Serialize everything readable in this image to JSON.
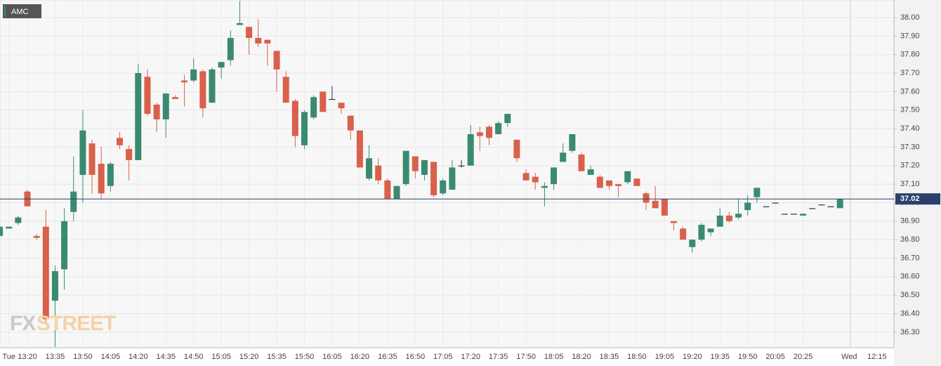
{
  "chart_data": {
    "type": "candlestick",
    "watermark": [
      "FX",
      "STREET"
    ],
    "categories": [
      null,
      "Tue",
      null,
      "13:20",
      null,
      null,
      "13:35",
      null,
      null,
      "13:50",
      null,
      null,
      "14:05",
      null,
      null,
      "14:20",
      null,
      null,
      "14:35",
      null,
      null,
      "14:50",
      null,
      null,
      "15:05",
      null,
      null,
      "15:20",
      null,
      null,
      "15:35",
      null,
      null,
      "15:50",
      null,
      null,
      "16:05",
      null,
      null,
      "16:20",
      null,
      null,
      "16:35",
      null,
      null,
      "16:50",
      null,
      null,
      "17:05",
      null,
      null,
      "17:20",
      null,
      null,
      "17:35",
      null,
      null,
      "17:50",
      null,
      null,
      "18:05",
      null,
      null,
      "18:20",
      null,
      null,
      "18:35",
      null,
      null,
      "18:50",
      null,
      null,
      "19:05",
      null,
      null,
      "19:20",
      null,
      null,
      "19:35",
      null,
      null,
      "19:50",
      null,
      null,
      "20:05",
      null,
      null,
      "20:25",
      null,
      null,
      null,
      null,
      "Wed",
      null,
      null,
      "12:15",
      null
    ],
    "separator_index": 92,
    "series": [
      {
        "name": "AMC",
        "up_color": "#3a8a70",
        "down_color": "#d9604a",
        "flat_color": "#333333",
        "open": [
          36.82,
          36.86,
          36.89,
          37.06,
          36.82,
          36.87,
          36.47,
          36.64,
          36.95,
          37.15,
          37.32,
          37.21,
          37.09,
          37.35,
          37.29,
          37.23,
          37.68,
          37.53,
          37.45,
          37.57,
          37.66,
          37.66,
          37.71,
          37.54,
          37.73,
          37.77,
          37.96,
          37.95,
          37.89,
          37.88,
          37.82,
          37.68,
          37.55,
          37.31,
          37.46,
          37.6,
          37.56,
          37.54,
          37.47,
          37.39,
          37.13,
          37.2,
          37.12,
          37.02,
          37.1,
          37.25,
          37.15,
          37.22,
          37.05,
          37.07,
          37.2,
          37.2,
          37.38,
          37.41,
          37.37,
          37.43,
          37.34,
          37.16,
          37.14,
          37.08,
          37.1,
          37.22,
          37.28,
          37.26,
          37.15,
          37.14,
          37.12,
          37.1,
          37.11,
          37.13,
          37.05,
          37.01,
          37.02,
          36.9,
          36.86,
          36.76,
          36.8,
          36.84,
          36.87,
          36.93,
          36.92,
          36.96,
          37.03,
          36.98,
          37.0,
          36.94,
          36.94,
          36.93,
          36.97,
          36.99,
          36.98,
          36.97,
          null,
          null,
          null,
          null,
          null
        ],
        "high": [
          36.88,
          36.87,
          36.93,
          37.07,
          36.83,
          36.96,
          36.66,
          36.97,
          37.25,
          37.5,
          37.34,
          37.3,
          37.22,
          37.38,
          37.31,
          37.75,
          37.72,
          37.54,
          37.59,
          37.58,
          37.69,
          37.78,
          37.72,
          37.73,
          37.76,
          37.93,
          38.09,
          37.95,
          37.99,
          37.88,
          37.82,
          37.71,
          37.56,
          37.5,
          37.58,
          37.6,
          37.63,
          37.54,
          37.47,
          37.39,
          37.31,
          37.24,
          37.13,
          37.09,
          37.28,
          37.25,
          37.23,
          37.22,
          37.13,
          37.23,
          37.23,
          37.42,
          37.41,
          37.42,
          37.44,
          37.48,
          37.34,
          37.18,
          37.16,
          37.11,
          37.19,
          37.32,
          37.37,
          37.27,
          37.2,
          37.15,
          37.12,
          37.1,
          37.17,
          37.13,
          37.06,
          37.09,
          37.02,
          36.9,
          36.87,
          36.8,
          36.89,
          36.86,
          36.97,
          36.95,
          37.02,
          37.04,
          37.08,
          36.98,
          37.0,
          36.94,
          36.94,
          36.94,
          36.97,
          36.99,
          36.98,
          37.02,
          null,
          null,
          null,
          null,
          null
        ],
        "low": [
          36.81,
          36.86,
          36.88,
          36.98,
          36.8,
          36.35,
          36.22,
          36.53,
          36.9,
          37.0,
          37.05,
          37.02,
          37.06,
          37.29,
          37.12,
          37.23,
          37.47,
          37.38,
          37.35,
          37.56,
          37.52,
          37.65,
          37.46,
          37.54,
          37.67,
          37.74,
          37.96,
          37.8,
          37.84,
          37.74,
          37.6,
          37.54,
          37.3,
          37.29,
          37.45,
          37.49,
          37.56,
          37.48,
          37.34,
          37.19,
          37.12,
          37.1,
          37.02,
          37.02,
          37.09,
          37.13,
          37.12,
          37.03,
          37.04,
          37.07,
          37.19,
          37.2,
          37.28,
          37.31,
          37.37,
          37.41,
          37.22,
          37.12,
          37.07,
          36.98,
          37.07,
          37.22,
          37.27,
          37.17,
          37.15,
          37.08,
          37.07,
          37.03,
          37.1,
          37.09,
          36.96,
          36.97,
          36.93,
          36.85,
          36.8,
          36.73,
          36.79,
          36.82,
          36.87,
          36.89,
          36.91,
          36.93,
          37.0,
          36.98,
          37.0,
          36.94,
          36.94,
          36.93,
          36.97,
          36.99,
          36.98,
          36.97,
          null,
          null,
          null,
          null,
          null
        ],
        "close": [
          36.87,
          36.87,
          36.92,
          36.98,
          36.81,
          36.37,
          36.63,
          36.9,
          37.06,
          37.39,
          37.15,
          37.05,
          37.21,
          37.31,
          37.23,
          37.7,
          37.48,
          37.45,
          37.59,
          37.56,
          37.65,
          37.72,
          37.51,
          37.72,
          37.76,
          37.89,
          37.97,
          37.89,
          37.86,
          37.86,
          37.72,
          37.54,
          37.36,
          37.49,
          37.57,
          37.49,
          37.56,
          37.51,
          37.39,
          37.19,
          37.24,
          37.12,
          37.02,
          37.09,
          37.28,
          37.17,
          37.23,
          37.04,
          37.12,
          37.19,
          37.2,
          37.37,
          37.36,
          37.35,
          37.43,
          37.48,
          37.24,
          37.12,
          37.11,
          37.09,
          37.19,
          37.27,
          37.37,
          37.17,
          37.18,
          37.08,
          37.09,
          37.09,
          37.17,
          37.09,
          37.0,
          36.97,
          36.93,
          36.89,
          36.8,
          36.8,
          36.88,
          36.86,
          36.93,
          36.9,
          36.94,
          37.0,
          37.08,
          36.98,
          37.0,
          36.94,
          36.94,
          36.94,
          36.97,
          36.99,
          36.98,
          37.02,
          null,
          null,
          null,
          null,
          null
        ]
      }
    ],
    "last_value": 37.02,
    "last_color": "#2c3e6b",
    "ylim": [
      36.216,
      38.095
    ],
    "yticks": [
      {
        "value": 36.3,
        "label": "36.30"
      },
      {
        "value": 36.4,
        "label": "36.40"
      },
      {
        "value": 36.5,
        "label": "36.50"
      },
      {
        "value": 36.6,
        "label": "36.60"
      },
      {
        "value": 36.7,
        "label": "36.70"
      },
      {
        "value": 36.8,
        "label": "36.80"
      },
      {
        "value": 36.9,
        "label": "36.90"
      },
      {
        "value": 37.0,
        "label": "37.00"
      },
      {
        "value": 37.1,
        "label": "37.10"
      },
      {
        "value": 37.2,
        "label": "37.20"
      },
      {
        "value": 37.3,
        "label": "37.30"
      },
      {
        "value": 37.4,
        "label": "37.40"
      },
      {
        "value": 37.5,
        "label": "37.50"
      },
      {
        "value": 37.6,
        "label": "37.60"
      },
      {
        "value": 37.7,
        "label": "37.70"
      },
      {
        "value": 37.8,
        "label": "37.80"
      },
      {
        "value": 37.9,
        "label": "37.90"
      },
      {
        "value": 38.0,
        "label": "38.00"
      }
    ],
    "grid": true
  }
}
